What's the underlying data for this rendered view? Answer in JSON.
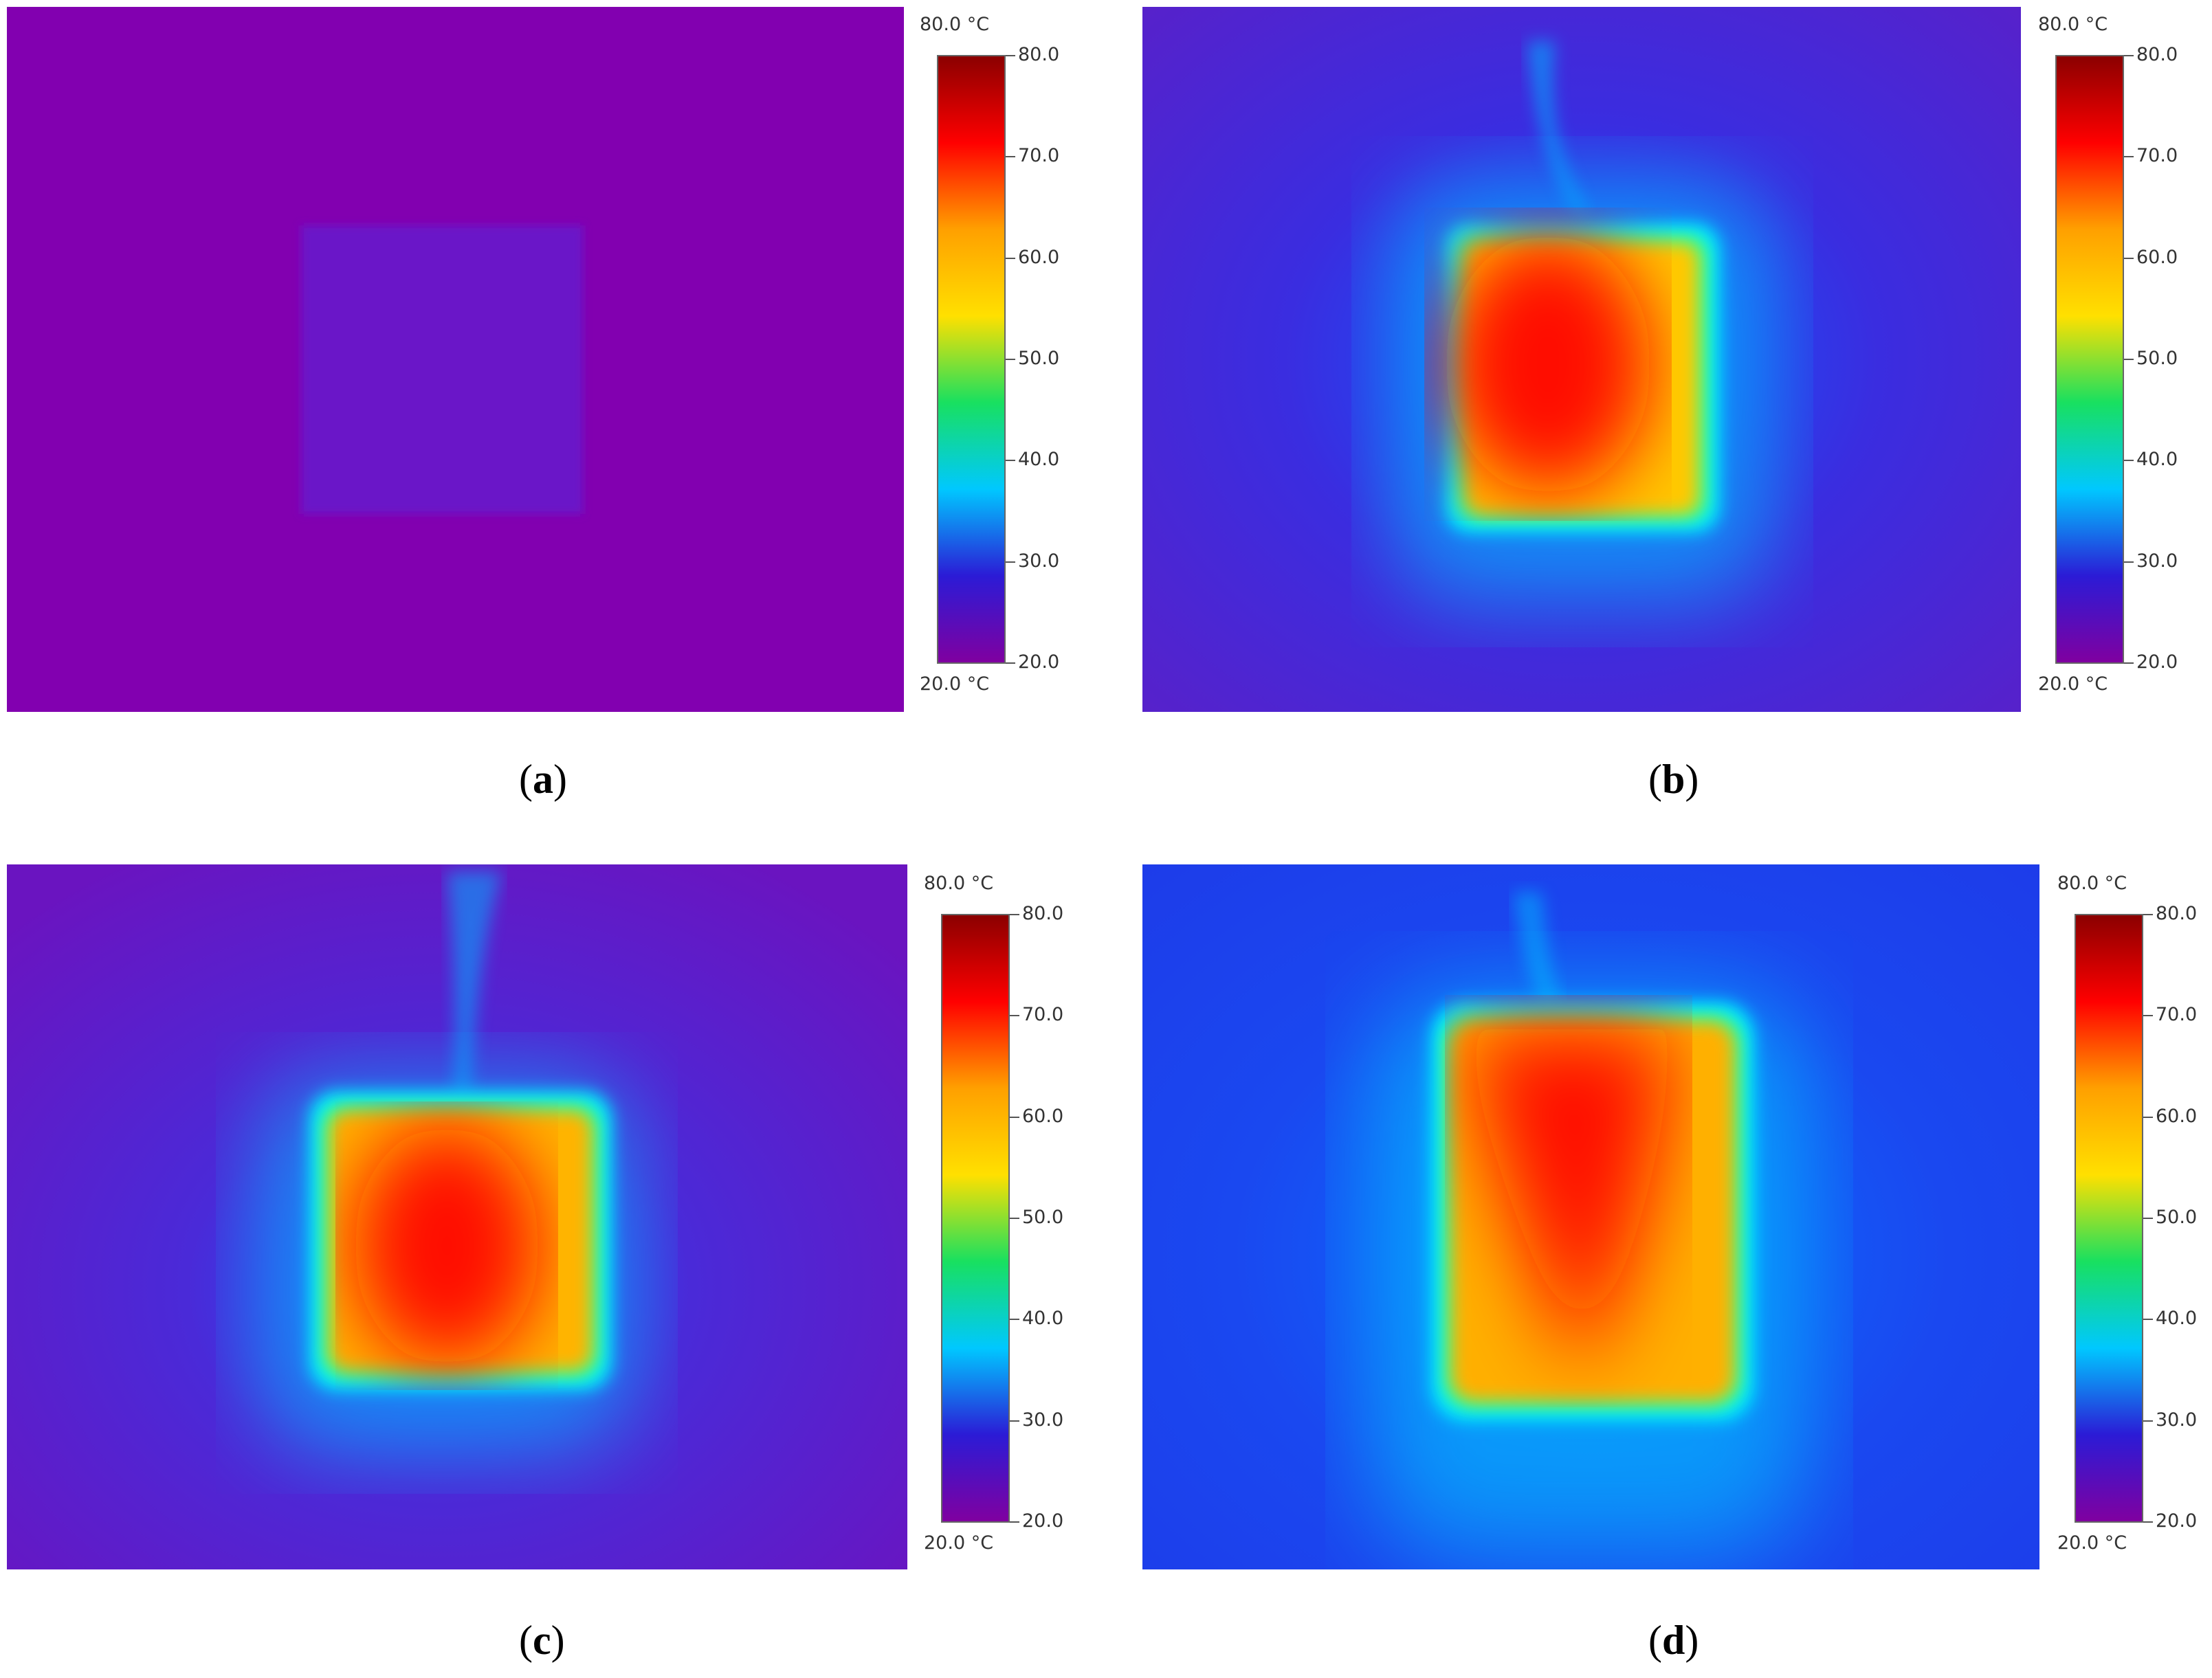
{
  "panels": [
    {
      "id": "a",
      "label": "a",
      "state": "ambient"
    },
    {
      "id": "b",
      "label": "b",
      "state": "hot"
    },
    {
      "id": "c",
      "label": "c",
      "state": "hot"
    },
    {
      "id": "d",
      "label": "d",
      "state": "very-hot"
    }
  ],
  "colorbar": {
    "max_label": "80.0 °C",
    "min_label": "20.0 °C",
    "ticks": [
      "80.0",
      "70.0",
      "60.0",
      "50.0",
      "40.0",
      "30.0",
      "20.0"
    ],
    "range": [
      20,
      80
    ],
    "colors": [
      "#8000a0",
      "#2b1bd6",
      "#00c8ff",
      "#18e060",
      "#ffe000",
      "#ffa000",
      "#ff0000",
      "#8b0000"
    ]
  },
  "background_colors": {
    "ambient": "#8200b0",
    "warm": "#3a2de0"
  }
}
